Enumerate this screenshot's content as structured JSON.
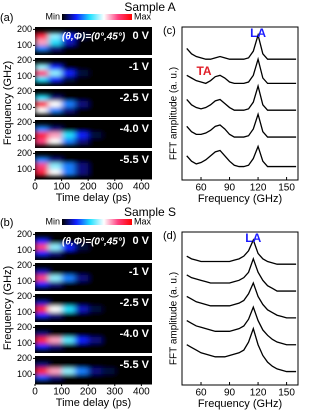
{
  "chart_data": [
    {
      "type": "heatmap",
      "title": "Sample A",
      "panel": "(a)",
      "annotation": "(θ,Φ)=(0°,45°)",
      "colorbar_labels": [
        "Min",
        "Max"
      ],
      "colormap": [
        "#000000",
        "#1020ff",
        "#20e0ff",
        "#ffffff",
        "#ff4080",
        "#ff0000"
      ],
      "x_label": "Time delay (ps)",
      "y_label": "Frequency (GHz)",
      "x": [
        0,
        50,
        100,
        150,
        200,
        250,
        300,
        350
      ],
      "y": [
        80,
        120,
        160
      ],
      "xlim": [
        0,
        440
      ],
      "ylim": [
        40,
        215
      ],
      "xticks": [
        0,
        100,
        200,
        300,
        400
      ],
      "yticks": [
        100,
        200
      ],
      "series": [
        {
          "name": "0 V",
          "values": [
            [
              0.3,
              0.1,
              0,
              0,
              0,
              0,
              0,
              0
            ],
            [
              0.7,
              0.4,
              0.15,
              0,
              0,
              0,
              0,
              0
            ],
            [
              0.9,
              0.5,
              0.2,
              0.05,
              0,
              0,
              0,
              0
            ]
          ]
        },
        {
          "name": "-1 V",
          "values": [
            [
              0.4,
              0.2,
              0.05,
              0,
              0,
              0,
              0,
              0
            ],
            [
              0.8,
              0.5,
              0.2,
              0.05,
              0,
              0,
              0,
              0
            ],
            [
              0.5,
              0.2,
              0,
              0,
              0,
              0,
              0,
              0
            ]
          ]
        },
        {
          "name": "-2.5 V",
          "values": [
            [
              0.6,
              0.3,
              0.1,
              0,
              0,
              0,
              0,
              0
            ],
            [
              0.9,
              0.6,
              0.3,
              0.1,
              0,
              0,
              0,
              0
            ],
            [
              0.4,
              0.1,
              0,
              0,
              0,
              0,
              0,
              0
            ]
          ]
        },
        {
          "name": "-4.0 V",
          "values": [
            [
              0.8,
              0.6,
              0.3,
              0.1,
              0,
              0,
              0,
              0
            ],
            [
              0.9,
              0.7,
              0.4,
              0.2,
              0.05,
              0,
              0,
              0
            ],
            [
              0.3,
              0.1,
              0,
              0,
              0,
              0,
              0,
              0
            ]
          ]
        },
        {
          "name": "-5.5 V",
          "values": [
            [
              0.9,
              0.6,
              0.3,
              0.1,
              0,
              0,
              0,
              0
            ],
            [
              0.8,
              0.5,
              0.3,
              0.1,
              0,
              0,
              0,
              0
            ],
            [
              0.3,
              0.1,
              0,
              0,
              0,
              0,
              0,
              0
            ]
          ]
        }
      ]
    },
    {
      "type": "line",
      "panel": "(c)",
      "x_label": "Frequency (GHz)",
      "y_label": "FFT amplitude (a. u.)",
      "color": "#000000",
      "annotations": [
        {
          "text": "LA",
          "color": "#1a1aff"
        },
        {
          "text": "TA",
          "color": "#e0202a"
        }
      ],
      "x": [
        45,
        50,
        55,
        60,
        65,
        70,
        75,
        80,
        85,
        90,
        95,
        100,
        105,
        110,
        115,
        120,
        125,
        130,
        135,
        140,
        145,
        150,
        155,
        160
      ],
      "xlim": [
        40,
        162
      ],
      "xticks": [
        60,
        90,
        120,
        150
      ],
      "ylim": [
        0.5,
        6.2
      ],
      "series": [
        {
          "values": [
            5.4,
            5.2,
            5.1,
            5.05,
            5.0,
            5.0,
            5.05,
            5.1,
            5.05,
            5.0,
            5.0,
            5.0,
            5.0,
            5.05,
            5.3,
            5.9,
            5.2,
            5.0,
            5.0,
            5.0,
            5.0,
            5.0,
            5.0,
            5.0
          ]
        },
        {
          "values": [
            4.4,
            4.3,
            4.2,
            4.15,
            4.1,
            4.2,
            4.35,
            4.4,
            4.3,
            4.15,
            4.1,
            4.1,
            4.1,
            4.15,
            4.4,
            5.0,
            4.3,
            4.1,
            4.1,
            4.1,
            4.1,
            4.1,
            4.1,
            4.1
          ]
        },
        {
          "values": [
            3.5,
            3.3,
            3.2,
            3.15,
            3.2,
            3.3,
            3.45,
            3.5,
            3.35,
            3.2,
            3.1,
            3.1,
            3.1,
            3.15,
            3.4,
            4.0,
            3.3,
            3.1,
            3.1,
            3.1,
            3.1,
            3.1,
            3.1,
            3.1
          ]
        },
        {
          "values": [
            2.5,
            2.3,
            2.2,
            2.2,
            2.25,
            2.35,
            2.5,
            2.55,
            2.4,
            2.2,
            2.1,
            2.1,
            2.1,
            2.15,
            2.4,
            2.95,
            2.3,
            2.1,
            2.1,
            2.1,
            2.1,
            2.1,
            2.1,
            2.1
          ]
        },
        {
          "values": [
            1.4,
            1.2,
            1.1,
            1.15,
            1.25,
            1.4,
            1.55,
            1.6,
            1.4,
            1.2,
            1.05,
            1.0,
            1.0,
            1.05,
            1.3,
            1.75,
            1.2,
            1.0,
            1.0,
            1.0,
            1.0,
            1.0,
            1.0,
            1.0
          ]
        }
      ]
    },
    {
      "type": "heatmap",
      "title": "Sample S",
      "panel": "(b)",
      "annotation": "(θ,Φ)=(0°,45°)",
      "colorbar_labels": [
        "Min",
        "Max"
      ],
      "colormap": [
        "#000000",
        "#1020ff",
        "#20e0ff",
        "#ffffff",
        "#ff4080",
        "#ff0000"
      ],
      "x_label": "Time delay (ps)",
      "y_label": "Frequency (GHz)",
      "x": [
        0,
        50,
        100,
        150,
        200,
        250,
        300,
        350
      ],
      "y": [
        80,
        120,
        160
      ],
      "xlim": [
        0,
        440
      ],
      "ylim": [
        40,
        215
      ],
      "xticks": [
        0,
        100,
        200,
        300,
        400
      ],
      "yticks": [
        100,
        200
      ],
      "series": [
        {
          "name": "0 V",
          "values": [
            [
              0.2,
              0.1,
              0,
              0,
              0,
              0,
              0,
              0
            ],
            [
              0.8,
              0.5,
              0.2,
              0.05,
              0,
              0,
              0,
              0
            ],
            [
              0.2,
              0,
              0,
              0,
              0,
              0,
              0,
              0
            ]
          ]
        },
        {
          "name": "-1 V",
          "values": [
            [
              0.2,
              0.1,
              0,
              0,
              0,
              0,
              0,
              0
            ],
            [
              0.8,
              0.5,
              0.3,
              0.1,
              0,
              0,
              0,
              0
            ],
            [
              0.15,
              0,
              0,
              0,
              0,
              0,
              0,
              0
            ]
          ]
        },
        {
          "name": "-2.5 V",
          "values": [
            [
              0.2,
              0.1,
              0,
              0,
              0,
              0,
              0,
              0
            ],
            [
              0.9,
              0.6,
              0.4,
              0.15,
              0.05,
              0,
              0,
              0
            ],
            [
              0.15,
              0,
              0,
              0,
              0,
              0,
              0,
              0
            ]
          ]
        },
        {
          "name": "-4.0 V",
          "values": [
            [
              0.2,
              0.1,
              0,
              0,
              0,
              0,
              0,
              0
            ],
            [
              0.9,
              0.7,
              0.45,
              0.2,
              0.1,
              0,
              0,
              0
            ],
            [
              0.1,
              0,
              0,
              0,
              0,
              0,
              0,
              0
            ]
          ]
        },
        {
          "name": "-5.5 V",
          "values": [
            [
              0.25,
              0.1,
              0,
              0,
              0,
              0,
              0,
              0
            ],
            [
              0.9,
              0.7,
              0.5,
              0.3,
              0.1,
              0.05,
              0,
              0
            ],
            [
              0.1,
              0,
              0,
              0,
              0,
              0,
              0,
              0
            ]
          ]
        }
      ]
    },
    {
      "type": "line",
      "panel": "(d)",
      "x_label": "Frequency (GHz)",
      "y_label": "FFT amplitude (a. u.)",
      "color": "#000000",
      "annotations": [
        {
          "text": "LA",
          "color": "#1a1aff"
        }
      ],
      "x": [
        45,
        50,
        55,
        60,
        65,
        70,
        75,
        80,
        85,
        90,
        95,
        100,
        105,
        110,
        115,
        120,
        125,
        130,
        135,
        140,
        145,
        150,
        155,
        160
      ],
      "xlim": [
        40,
        162
      ],
      "xticks": [
        60,
        90,
        120,
        150
      ],
      "ylim": [
        0.5,
        6.2
      ],
      "series": [
        {
          "values": [
            5.3,
            5.2,
            5.15,
            5.1,
            5.1,
            5.1,
            5.1,
            5.1,
            5.1,
            5.1,
            5.15,
            5.2,
            5.3,
            5.5,
            5.9,
            5.4,
            5.2,
            5.1,
            5.05,
            5.0,
            5.0,
            5.0,
            5.0,
            5.0
          ]
        },
        {
          "values": [
            4.6,
            4.5,
            4.45,
            4.4,
            4.35,
            4.3,
            4.3,
            4.3,
            4.3,
            4.3,
            4.35,
            4.4,
            4.5,
            4.7,
            5.2,
            4.7,
            4.4,
            4.2,
            4.1,
            4.0,
            4.0,
            4.0,
            4.0,
            4.0
          ]
        },
        {
          "values": [
            3.8,
            3.7,
            3.6,
            3.55,
            3.5,
            3.45,
            3.45,
            3.45,
            3.45,
            3.45,
            3.5,
            3.55,
            3.65,
            3.9,
            4.3,
            3.8,
            3.5,
            3.3,
            3.2,
            3.1,
            3.05,
            3.0,
            3.0,
            3.0
          ]
        },
        {
          "values": [
            2.9,
            2.8,
            2.7,
            2.65,
            2.6,
            2.55,
            2.5,
            2.5,
            2.5,
            2.5,
            2.55,
            2.6,
            2.7,
            2.95,
            3.4,
            2.9,
            2.55,
            2.35,
            2.2,
            2.1,
            2.05,
            2.0,
            2.0,
            2.0
          ]
        },
        {
          "values": [
            2.0,
            1.9,
            1.8,
            1.7,
            1.65,
            1.6,
            1.55,
            1.55,
            1.55,
            1.6,
            1.65,
            1.7,
            1.8,
            2.1,
            2.6,
            2.0,
            1.6,
            1.35,
            1.2,
            1.1,
            1.05,
            1.0,
            1.0,
            1.0
          ]
        }
      ]
    }
  ]
}
